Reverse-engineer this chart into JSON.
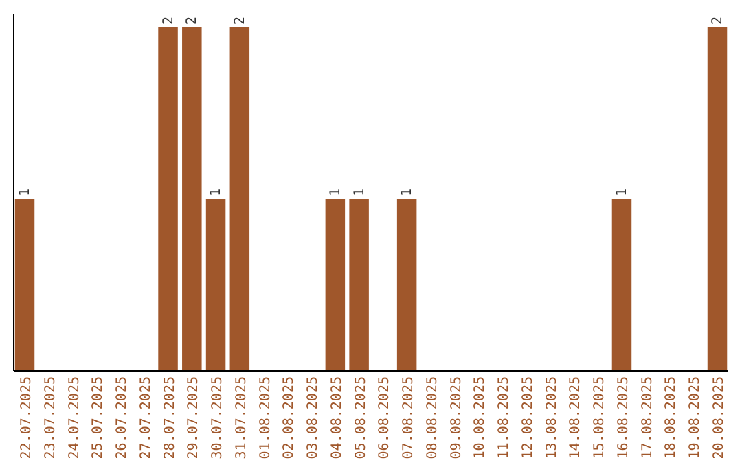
{
  "chart_data": {
    "type": "bar",
    "categories": [
      "22.07.2025",
      "23.07.2025",
      "24.07.2025",
      "25.07.2025",
      "26.07.2025",
      "27.07.2025",
      "28.07.2025",
      "29.07.2025",
      "30.07.2025",
      "31.07.2025",
      "01.08.2025",
      "02.08.2025",
      "03.08.2025",
      "04.08.2025",
      "05.08.2025",
      "06.08.2025",
      "07.08.2025",
      "08.08.2025",
      "09.08.2025",
      "10.08.2025",
      "11.08.2025",
      "12.08.2025",
      "13.08.2025",
      "14.08.2025",
      "15.08.2025",
      "16.08.2025",
      "17.08.2025",
      "18.08.2025",
      "19.08.2025",
      "20.08.2025"
    ],
    "values": [
      1,
      0,
      0,
      0,
      0,
      0,
      2,
      2,
      1,
      2,
      0,
      0,
      0,
      1,
      1,
      0,
      1,
      0,
      0,
      0,
      0,
      0,
      0,
      0,
      0,
      1,
      0,
      0,
      0,
      2
    ],
    "value_labels": [
      "1",
      null,
      null,
      null,
      null,
      null,
      "2",
      "2",
      "1",
      "2",
      null,
      null,
      null,
      "1",
      "1",
      null,
      "1",
      null,
      null,
      null,
      null,
      null,
      null,
      null,
      null,
      "1",
      null,
      null,
      null,
      "2"
    ],
    "color": "#a0572b"
  }
}
